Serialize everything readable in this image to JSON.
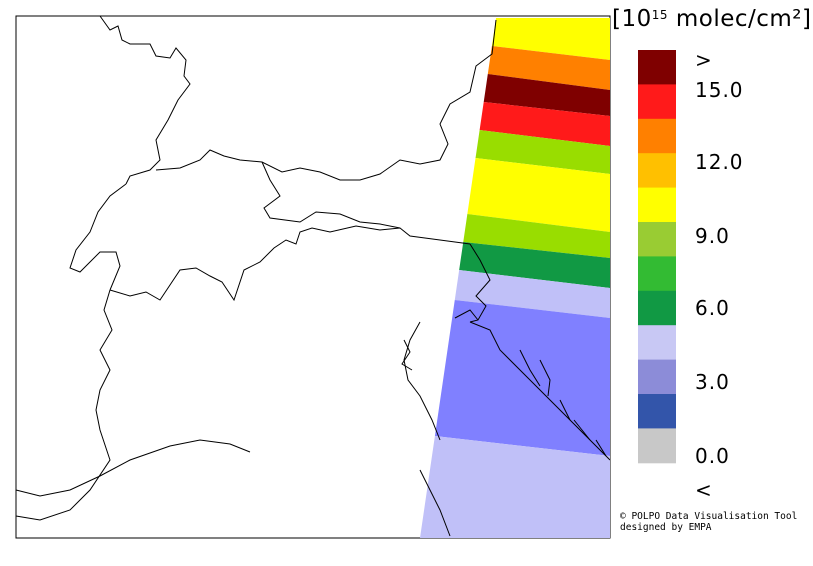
{
  "legend": {
    "unit_prefix": "[10",
    "unit_exponent": "15",
    "unit_suffix": " molec/cm²]",
    "ticks": [
      ">",
      "15.0",
      "12.0",
      "9.0",
      "6.0",
      "3.0",
      "0.0",
      "<"
    ],
    "bins": [
      {
        "label": ">",
        "color": "#7f0000"
      },
      {
        "label": "15.0",
        "color": "#ff1a1a"
      },
      {
        "label": "13.5",
        "color": "#ff8000"
      },
      {
        "label": "12.0",
        "color": "#ffc000"
      },
      {
        "label": "10.5",
        "color": "#ffff00"
      },
      {
        "label": "9.0",
        "color": "#99cc33"
      },
      {
        "label": "7.5",
        "color": "#33bb33"
      },
      {
        "label": "6.0",
        "color": "#119944"
      },
      {
        "label": "4.5",
        "color": "#c8c8f4"
      },
      {
        "label": "3.0",
        "color": "#8c8cd8"
      },
      {
        "label": "1.5",
        "color": "#3355aa"
      },
      {
        "label": "<",
        "color": "#c8c8c8"
      }
    ]
  },
  "swath_rows": [
    {
      "value": "10.5",
      "color": "#ffff00"
    },
    {
      "value": "13.5",
      "color": "#ff8000"
    },
    {
      "value": ">",
      "color": "#7f0000"
    },
    {
      "value": "15.0",
      "color": "#ff1a1a"
    },
    {
      "value": "9.0",
      "color": "#99dd00"
    },
    {
      "value": "10.5",
      "color": "#ffff00"
    },
    {
      "value": "9.0",
      "color": "#99dd00"
    },
    {
      "value": "6.0",
      "color": "#119944"
    },
    {
      "value": "4.5",
      "color": "#c0c0f8"
    },
    {
      "value": "3.0",
      "color": "#8080ff"
    },
    {
      "value": "4.5",
      "color": "#c0c0f8"
    }
  ],
  "credit": {
    "line1": "© POLPO Data Visualisation Tool",
    "line2": "  designed by EMPA"
  }
}
